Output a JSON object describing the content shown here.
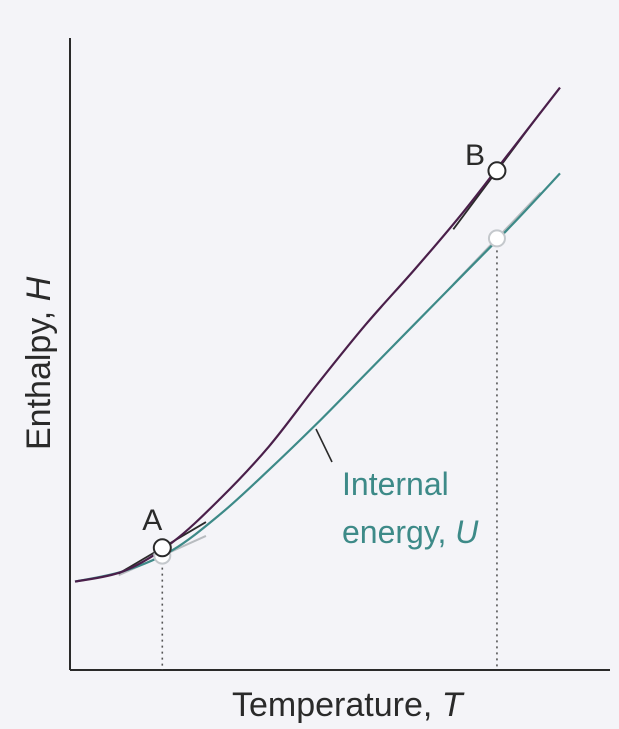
{
  "chart_data": {
    "type": "line",
    "xlabel": "Temperature,",
    "xlabel_var": "T",
    "ylabel": "Enthalpy,",
    "ylabel_var": "H",
    "xlim": [
      0,
      1
    ],
    "ylim": [
      0,
      1
    ],
    "grid": false,
    "series": [
      {
        "id": "H",
        "color": "#4a1f4a",
        "x": [
          0,
          0.1,
          0.2,
          0.3,
          0.4,
          0.5,
          0.6,
          0.7,
          0.8,
          0.9,
          1.0
        ],
        "y": [
          0.17,
          0.19,
          0.245,
          0.33,
          0.43,
          0.55,
          0.665,
          0.77,
          0.88,
          1.0,
          1.12
        ]
      },
      {
        "id": "U",
        "color": "#3d8a88",
        "label_line1": "Internal",
        "label_line2": "energy,",
        "label_var": "U",
        "x": [
          0,
          0.1,
          0.2,
          0.3,
          0.4,
          0.5,
          0.6,
          0.7,
          0.8,
          0.9,
          1.0
        ],
        "y": [
          0.17,
          0.19,
          0.23,
          0.3,
          0.385,
          0.475,
          0.57,
          0.665,
          0.76,
          0.855,
          0.955
        ]
      }
    ],
    "points": [
      {
        "label": "A",
        "x": 0.18,
        "y_H": 0.235,
        "y_U": 0.22,
        "tangent_slope_H": 0.55,
        "tangent_slope_U": 0.42
      },
      {
        "label": "B",
        "x": 0.87,
        "y_H": 0.96,
        "y_U": 0.83,
        "tangent_slope_H": 1.25,
        "tangent_slope_U": 0.98
      }
    ]
  }
}
